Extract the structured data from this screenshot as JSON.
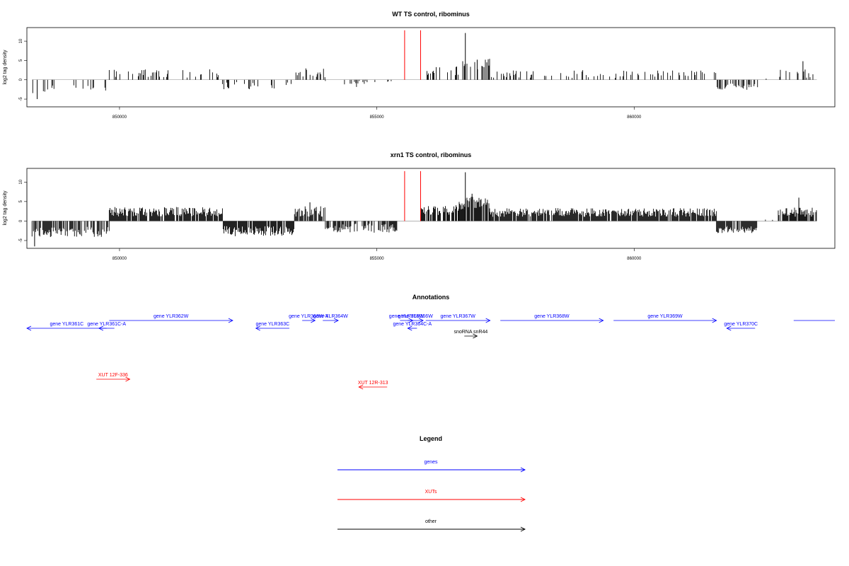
{
  "chart_data": [
    {
      "type": "bar",
      "title": "WT TS control, ribominus",
      "ylabel": "log2 tag density",
      "xlabel": "",
      "xlim": [
        848200,
        863900
      ],
      "ylim": [
        -7,
        13.5
      ],
      "yticks": [
        -5,
        0,
        5,
        10
      ],
      "xticks": [
        850000,
        855000,
        860000
      ],
      "grid": false,
      "bar_color": "#000000",
      "marker_color": "#ff0000",
      "markers": [
        {
          "x": 855540,
          "y": 12.8
        },
        {
          "x": 855850,
          "y": 12.8
        }
      ],
      "segments": [
        {
          "x0": 848300,
          "x1": 849800,
          "y": -2.5,
          "density": 0.16,
          "jitter": 1.3
        },
        {
          "x0": 849800,
          "x1": 852000,
          "y": 1.6,
          "density": 0.22,
          "jitter": 1.1
        },
        {
          "x0": 852000,
          "x1": 853400,
          "y": -1.6,
          "density": 0.18,
          "jitter": 1.0
        },
        {
          "x0": 853400,
          "x1": 854000,
          "y": 1.8,
          "density": 0.25,
          "jitter": 1.2
        },
        {
          "x0": 854000,
          "x1": 855400,
          "y": -1.0,
          "density": 0.12,
          "jitter": 0.9
        },
        {
          "x0": 855850,
          "x1": 856600,
          "y": 2.2,
          "density": 0.3,
          "jitter": 1.3
        },
        {
          "x0": 856600,
          "x1": 857200,
          "y": 4.2,
          "density": 0.6,
          "jitter": 1.5
        },
        {
          "x0": 857200,
          "x1": 861600,
          "y": 1.5,
          "density": 0.22,
          "jitter": 1.0
        },
        {
          "x0": 861600,
          "x1": 862400,
          "y": -1.8,
          "density": 0.45,
          "jitter": 0.8
        },
        {
          "x0": 862400,
          "x1": 862800,
          "y": 0.2,
          "density": 0.05,
          "jitter": 0.3
        },
        {
          "x0": 862800,
          "x1": 863550,
          "y": 1.7,
          "density": 0.3,
          "jitter": 1.2
        }
      ],
      "peaks": [
        {
          "x": 856720,
          "y": 12.1
        },
        {
          "x": 856950,
          "y": 5.2
        },
        {
          "x": 848400,
          "y": -5.0
        },
        {
          "x": 863280,
          "y": 4.8
        }
      ]
    },
    {
      "type": "bar",
      "title": "xrn1 TS control, ribominus",
      "ylabel": "log2 tag density",
      "xlabel": "",
      "xlim": [
        848200,
        863900
      ],
      "ylim": [
        -7,
        13.5
      ],
      "yticks": [
        -5,
        0,
        5,
        10
      ],
      "xticks": [
        850000,
        855000,
        860000
      ],
      "grid": false,
      "bar_color": "#000000",
      "marker_color": "#ff0000",
      "markers": [
        {
          "x": 855540,
          "y": 12.8
        },
        {
          "x": 855850,
          "y": 12.8
        }
      ],
      "segments": [
        {
          "x0": 848300,
          "x1": 849800,
          "y": -2.8,
          "density": 0.7,
          "jitter": 1.3
        },
        {
          "x0": 849800,
          "x1": 852000,
          "y": 2.4,
          "density": 0.9,
          "jitter": 1.2
        },
        {
          "x0": 852000,
          "x1": 853400,
          "y": -2.6,
          "density": 0.9,
          "jitter": 1.3
        },
        {
          "x0": 853400,
          "x1": 854000,
          "y": 2.5,
          "density": 0.8,
          "jitter": 1.4
        },
        {
          "x0": 854000,
          "x1": 855400,
          "y": -1.8,
          "density": 0.7,
          "jitter": 1.2
        },
        {
          "x0": 855850,
          "x1": 856600,
          "y": 2.8,
          "density": 0.8,
          "jitter": 1.3
        },
        {
          "x0": 856600,
          "x1": 857200,
          "y": 4.6,
          "density": 0.9,
          "jitter": 1.6
        },
        {
          "x0": 857200,
          "x1": 861600,
          "y": 2.2,
          "density": 0.9,
          "jitter": 1.1
        },
        {
          "x0": 861600,
          "x1": 862400,
          "y": -2.2,
          "density": 0.8,
          "jitter": 0.9
        },
        {
          "x0": 862400,
          "x1": 862800,
          "y": 0.2,
          "density": 0.05,
          "jitter": 0.3
        },
        {
          "x0": 862800,
          "x1": 863550,
          "y": 2.3,
          "density": 0.85,
          "jitter": 1.2
        }
      ],
      "peaks": [
        {
          "x": 856720,
          "y": 12.5
        },
        {
          "x": 856850,
          "y": 7.0
        },
        {
          "x": 848350,
          "y": -6.5
        },
        {
          "x": 863200,
          "y": 6.0
        },
        {
          "x": 853700,
          "y": 4.8
        }
      ]
    }
  ],
  "annotations": {
    "title": "Annotations",
    "features": [
      {
        "label": "gene YLR361C",
        "start": 848200,
        "end": 849750,
        "strand": "-",
        "row": 1,
        "color": "#0000ff"
      },
      {
        "label": "gene YLR361C-A",
        "start": 849600,
        "end": 849900,
        "strand": "-",
        "row": 1,
        "color": "#0000ff"
      },
      {
        "label": "gene YLR362W",
        "start": 849800,
        "end": 852200,
        "strand": "+",
        "row": 0,
        "color": "#0000ff"
      },
      {
        "label": "gene YLR363C",
        "start": 852650,
        "end": 853300,
        "strand": "-",
        "row": 1,
        "color": "#0000ff"
      },
      {
        "label": "gene YLR363W-A",
        "start": 853550,
        "end": 853800,
        "strand": "+",
        "row": 0,
        "color": "#0000ff"
      },
      {
        "label": "gene YLR364W",
        "start": 853950,
        "end": 854250,
        "strand": "+",
        "row": 0,
        "color": "#0000ff"
      },
      {
        "label": "gene YLR365W",
        "start": 855450,
        "end": 855700,
        "strand": "+",
        "row": 0,
        "color": "#0000ff"
      },
      {
        "label": "gene YLR366W",
        "start": 855600,
        "end": 855900,
        "strand": "+",
        "row": 0,
        "color": "#0000ff"
      },
      {
        "label": "gene YLR364C-A",
        "start": 855600,
        "end": 855780,
        "strand": "-",
        "row": 1,
        "color": "#0000ff"
      },
      {
        "label": "gene YLR367W",
        "start": 855950,
        "end": 857200,
        "strand": "+",
        "row": 0,
        "color": "#0000ff"
      },
      {
        "label": "snoRNA snR44",
        "start": 856700,
        "end": 856950,
        "strand": "+",
        "row": 2,
        "color": "#000000"
      },
      {
        "label": "gene YLR368W",
        "start": 857400,
        "end": 859400,
        "strand": "+",
        "row": 0,
        "color": "#0000ff"
      },
      {
        "label": "gene YLR369W",
        "start": 859600,
        "end": 861600,
        "strand": "+",
        "row": 0,
        "color": "#0000ff"
      },
      {
        "label": "gene YLR370C",
        "start": 861800,
        "end": 862350,
        "strand": "-",
        "row": 1,
        "color": "#0000ff"
      },
      {
        "label": "",
        "start": 863100,
        "end": 863900,
        "strand": "none",
        "row": 0,
        "color": "#0000ff"
      },
      {
        "label": "XUT 12F-336",
        "start": 849550,
        "end": 850200,
        "strand": "+",
        "row": 4,
        "color": "#ff0000"
      },
      {
        "label": "XUT 12R-313",
        "start": 854650,
        "end": 855200,
        "strand": "-",
        "row": 5,
        "color": "#ff0000"
      }
    ]
  },
  "legend": {
    "title": "Legend",
    "items": [
      {
        "label": "genes",
        "color": "#0000ff"
      },
      {
        "label": "XUTs",
        "color": "#ff0000"
      },
      {
        "label": "other",
        "color": "#000000"
      }
    ]
  }
}
